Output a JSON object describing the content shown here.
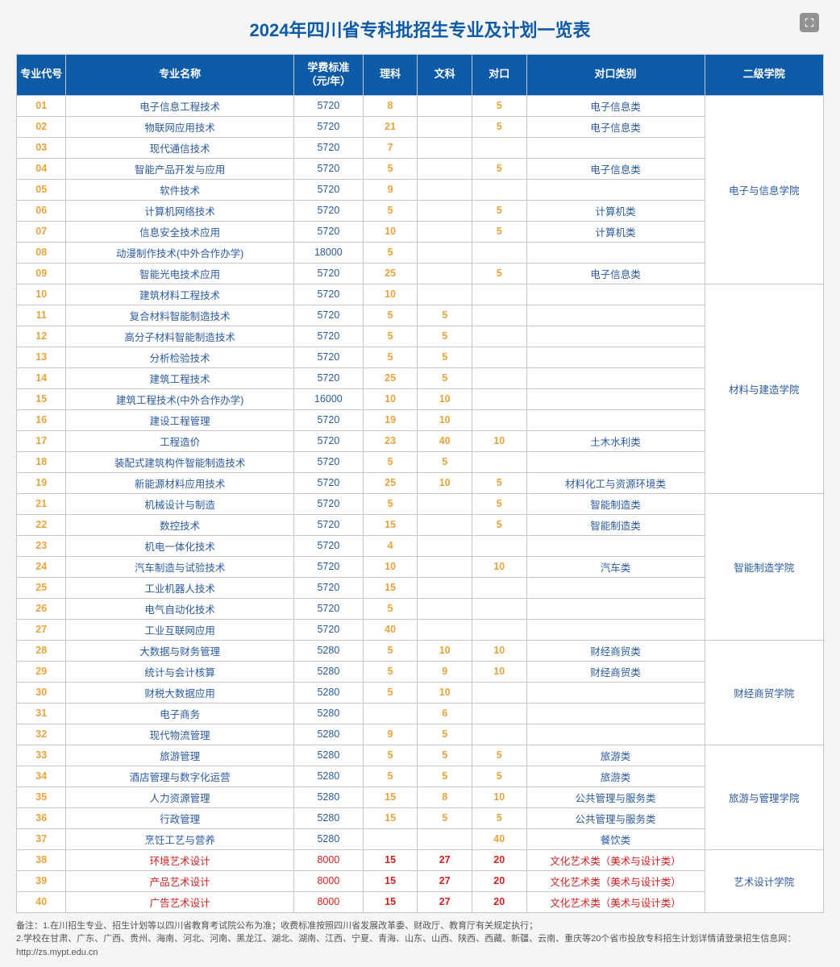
{
  "title": "2024年四川省专科批招生专业及计划一览表",
  "headers": {
    "code": "专业代号",
    "name": "专业名称",
    "fee": "学费标准（元/年）",
    "sci": "理科",
    "lib": "文科",
    "dk": "对口",
    "cat": "对口类别",
    "college": "二级学院"
  },
  "rows": [
    {
      "code": "01",
      "name": "电子信息工程技术",
      "fee": "5720",
      "sci": "8",
      "lib": "",
      "dk": "5",
      "cat": "电子信息类",
      "college": "电子与信息学院",
      "rowspan": 9
    },
    {
      "code": "02",
      "name": "物联网应用技术",
      "fee": "5720",
      "sci": "21",
      "lib": "",
      "dk": "5",
      "cat": "电子信息类"
    },
    {
      "code": "03",
      "name": "现代通信技术",
      "fee": "5720",
      "sci": "7",
      "lib": "",
      "dk": "",
      "cat": ""
    },
    {
      "code": "04",
      "name": "智能产品开发与应用",
      "fee": "5720",
      "sci": "5",
      "lib": "",
      "dk": "5",
      "cat": "电子信息类"
    },
    {
      "code": "05",
      "name": "软件技术",
      "fee": "5720",
      "sci": "9",
      "lib": "",
      "dk": "",
      "cat": ""
    },
    {
      "code": "06",
      "name": "计算机网络技术",
      "fee": "5720",
      "sci": "5",
      "lib": "",
      "dk": "5",
      "cat": "计算机类"
    },
    {
      "code": "07",
      "name": "信息安全技术应用",
      "fee": "5720",
      "sci": "10",
      "lib": "",
      "dk": "5",
      "cat": "计算机类"
    },
    {
      "code": "08",
      "name": "动漫制作技术(中外合作办学)",
      "fee": "18000",
      "sci": "5",
      "lib": "",
      "dk": "",
      "cat": ""
    },
    {
      "code": "09",
      "name": "智能光电技术应用",
      "fee": "5720",
      "sci": "25",
      "lib": "",
      "dk": "5",
      "cat": "电子信息类"
    },
    {
      "code": "10",
      "name": "建筑材料工程技术",
      "fee": "5720",
      "sci": "10",
      "lib": "",
      "dk": "",
      "cat": "",
      "college": "材料与建造学院",
      "rowspan": 10
    },
    {
      "code": "11",
      "name": "复合材料智能制造技术",
      "fee": "5720",
      "sci": "5",
      "lib": "5",
      "dk": "",
      "cat": ""
    },
    {
      "code": "12",
      "name": "高分子材料智能制造技术",
      "fee": "5720",
      "sci": "5",
      "lib": "5",
      "dk": "",
      "cat": ""
    },
    {
      "code": "13",
      "name": "分析检验技术",
      "fee": "5720",
      "sci": "5",
      "lib": "5",
      "dk": "",
      "cat": ""
    },
    {
      "code": "14",
      "name": "建筑工程技术",
      "fee": "5720",
      "sci": "25",
      "lib": "5",
      "dk": "",
      "cat": ""
    },
    {
      "code": "15",
      "name": "建筑工程技术(中外合作办学)",
      "fee": "16000",
      "sci": "10",
      "lib": "10",
      "dk": "",
      "cat": ""
    },
    {
      "code": "16",
      "name": "建设工程管理",
      "fee": "5720",
      "sci": "19",
      "lib": "10",
      "dk": "",
      "cat": ""
    },
    {
      "code": "17",
      "name": "工程造价",
      "fee": "5720",
      "sci": "23",
      "lib": "40",
      "dk": "10",
      "cat": "土木水利类"
    },
    {
      "code": "18",
      "name": "装配式建筑构件智能制造技术",
      "fee": "5720",
      "sci": "5",
      "lib": "5",
      "dk": "",
      "cat": ""
    },
    {
      "code": "19",
      "name": "新能源材料应用技术",
      "fee": "5720",
      "sci": "25",
      "lib": "10",
      "dk": "5",
      "cat": "材料化工与资源环境类"
    },
    {
      "code": "21",
      "name": "机械设计与制造",
      "fee": "5720",
      "sci": "5",
      "lib": "",
      "dk": "5",
      "cat": "智能制造类",
      "college": "智能制造学院",
      "rowspan": 7
    },
    {
      "code": "22",
      "name": "数控技术",
      "fee": "5720",
      "sci": "15",
      "lib": "",
      "dk": "5",
      "cat": "智能制造类"
    },
    {
      "code": "23",
      "name": "机电一体化技术",
      "fee": "5720",
      "sci": "4",
      "lib": "",
      "dk": "",
      "cat": ""
    },
    {
      "code": "24",
      "name": "汽车制造与试验技术",
      "fee": "5720",
      "sci": "10",
      "lib": "",
      "dk": "10",
      "cat": "汽车类"
    },
    {
      "code": "25",
      "name": "工业机器人技术",
      "fee": "5720",
      "sci": "15",
      "lib": "",
      "dk": "",
      "cat": ""
    },
    {
      "code": "26",
      "name": "电气自动化技术",
      "fee": "5720",
      "sci": "5",
      "lib": "",
      "dk": "",
      "cat": ""
    },
    {
      "code": "27",
      "name": "工业互联网应用",
      "fee": "5720",
      "sci": "40",
      "lib": "",
      "dk": "",
      "cat": ""
    },
    {
      "code": "28",
      "name": "大数据与财务管理",
      "fee": "5280",
      "sci": "5",
      "lib": "10",
      "dk": "10",
      "cat": "财经商贸类",
      "college": "财经商贸学院",
      "rowspan": 5
    },
    {
      "code": "29",
      "name": "统计与会计核算",
      "fee": "5280",
      "sci": "5",
      "lib": "9",
      "dk": "10",
      "cat": "财经商贸类"
    },
    {
      "code": "30",
      "name": "财税大数据应用",
      "fee": "5280",
      "sci": "5",
      "lib": "10",
      "dk": "",
      "cat": ""
    },
    {
      "code": "31",
      "name": "电子商务",
      "fee": "5280",
      "sci": "",
      "lib": "6",
      "dk": "",
      "cat": ""
    },
    {
      "code": "32",
      "name": "现代物流管理",
      "fee": "5280",
      "sci": "9",
      "lib": "5",
      "dk": "",
      "cat": ""
    },
    {
      "code": "33",
      "name": "旅游管理",
      "fee": "5280",
      "sci": "5",
      "lib": "5",
      "dk": "5",
      "cat": "旅游类",
      "college": "旅游与管理学院",
      "rowspan": 5
    },
    {
      "code": "34",
      "name": "酒店管理与数字化运营",
      "fee": "5280",
      "sci": "5",
      "lib": "5",
      "dk": "5",
      "cat": "旅游类"
    },
    {
      "code": "35",
      "name": "人力资源管理",
      "fee": "5280",
      "sci": "15",
      "lib": "8",
      "dk": "10",
      "cat": "公共管理与服务类"
    },
    {
      "code": "36",
      "name": "行政管理",
      "fee": "5280",
      "sci": "15",
      "lib": "5",
      "dk": "5",
      "cat": "公共管理与服务类"
    },
    {
      "code": "37",
      "name": "烹饪工艺与营养",
      "fee": "5280",
      "sci": "",
      "lib": "",
      "dk": "40",
      "cat": "餐饮类"
    },
    {
      "code": "38",
      "name": "环境艺术设计",
      "fee": "8000",
      "sci": "15",
      "lib": "27",
      "dk": "20",
      "cat": "文化艺术类（美术与设计类）",
      "red": true,
      "college": "艺术设计学院",
      "rowspan": 3
    },
    {
      "code": "39",
      "name": "产品艺术设计",
      "fee": "8000",
      "sci": "15",
      "lib": "27",
      "dk": "20",
      "cat": "文化艺术类（美术与设计类）",
      "red": true
    },
    {
      "code": "40",
      "name": "广告艺术设计",
      "fee": "8000",
      "sci": "15",
      "lib": "27",
      "dk": "20",
      "cat": "文化艺术类（美术与设计类）",
      "red": true
    }
  ],
  "footnote1": "备注：1.在川招生专业、招生计划等以四川省教育考试院公布为准；收费标准按照四川省发展改革委、财政厅、教育厅有关规定执行；",
  "footnote2": "2.学校在甘肃、广东、广西、贵州、海南、河北、河南、黑龙江、湖北、湖南、江西、宁夏、青海、山东、山西、陕西、西藏、新疆、云南、重庆等20个省市投放专科招生计划详情请登录招生信息网：http://zs.mypt.edu.cn",
  "col_widths": {
    "code": "50px",
    "name": "230px",
    "fee": "70px",
    "sci": "55px",
    "lib": "55px",
    "dk": "55px",
    "cat": "180px",
    "college": "120px"
  },
  "colors": {
    "header_bg": "#0d5aa7",
    "border": "#bfc9d4",
    "orange": "#e8a33d",
    "blue": "#2b5aa0",
    "red": "#d02020"
  }
}
